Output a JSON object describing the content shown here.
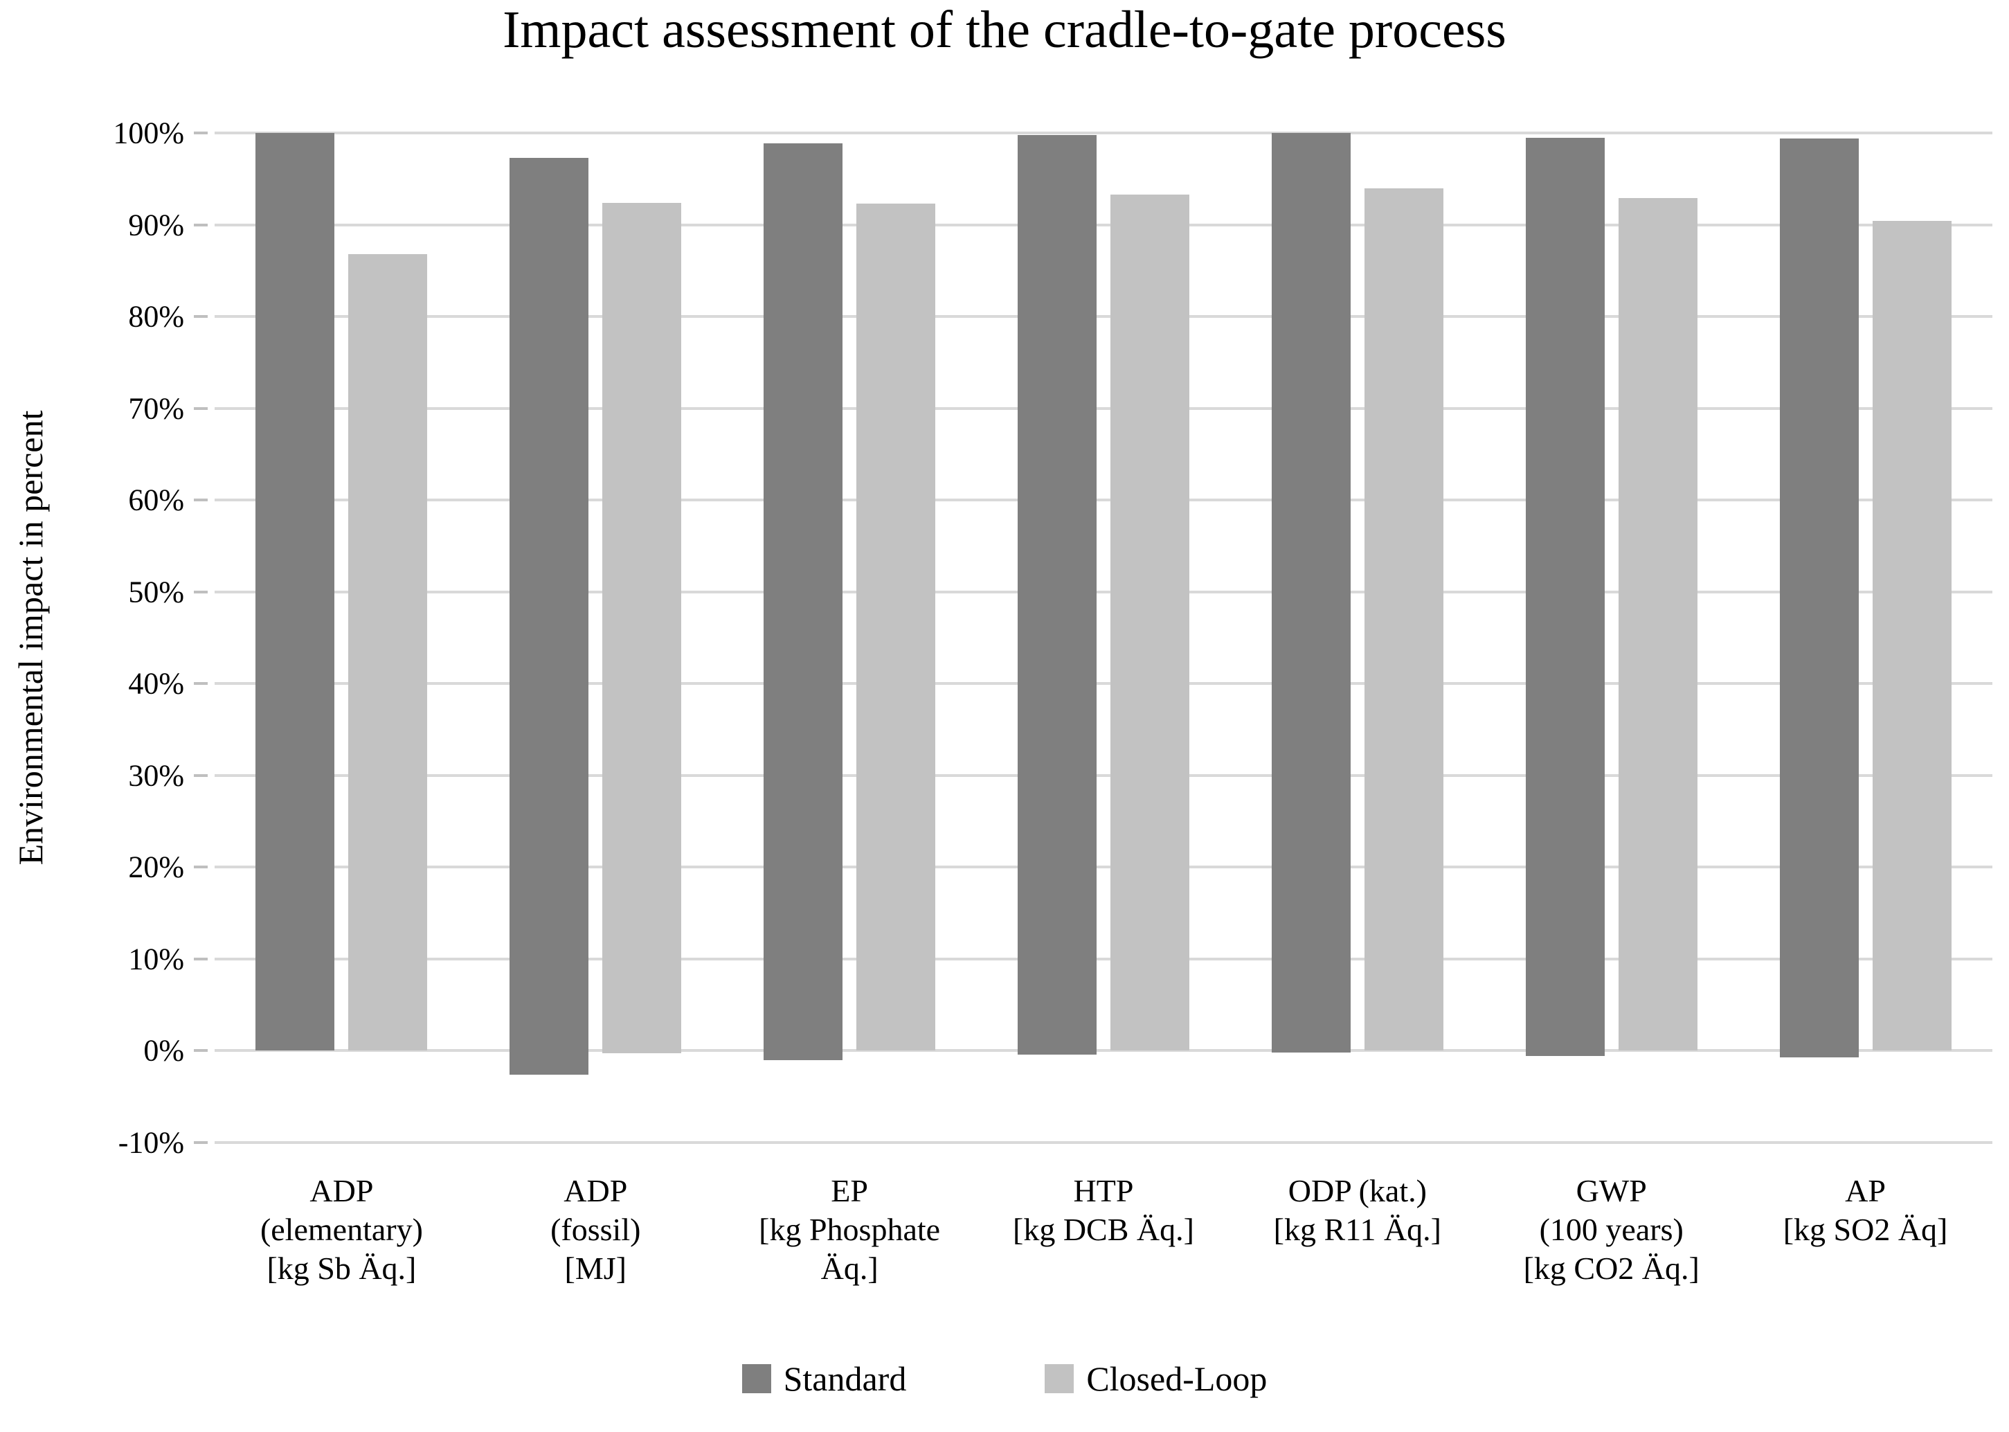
{
  "chart_data": {
    "type": "bar",
    "title": "Impact assessment of the cradle-to-gate process",
    "xlabel": "",
    "ylabel": "Environmental impact in percent",
    "ylim": [
      -10,
      100
    ],
    "grid": "horizontal",
    "legend_position": "bottom",
    "yticks": [
      {
        "value": 100,
        "label": "100%"
      },
      {
        "value": 90,
        "label": "90%"
      },
      {
        "value": 80,
        "label": "80%"
      },
      {
        "value": 70,
        "label": "70%"
      },
      {
        "value": 60,
        "label": "60%"
      },
      {
        "value": 50,
        "label": "50%"
      },
      {
        "value": 40,
        "label": "40%"
      },
      {
        "value": 30,
        "label": "30%"
      },
      {
        "value": 20,
        "label": "20%"
      },
      {
        "value": 10,
        "label": "10%"
      },
      {
        "value": 0,
        "label": "0%"
      },
      {
        "value": -10,
        "label": "-10%"
      }
    ],
    "categories": [
      [
        "ADP",
        "(elementary)",
        "[kg Sb Äq.]"
      ],
      [
        "ADP",
        "(fossil)",
        "[MJ]"
      ],
      [
        "EP",
        "[kg Phosphate",
        "Äq.]"
      ],
      [
        "HTP",
        "[kg DCB Äq.]"
      ],
      [
        "ODP (kat.)",
        "[kg R11 Äq.]"
      ],
      [
        "GWP",
        "(100 years)",
        "[kg CO2 Äq.]"
      ],
      [
        "AP",
        "[kg SO2 Äq]"
      ]
    ],
    "series": [
      {
        "name": "Standard",
        "color": "#7f7f7f",
        "values": [
          100,
          97.3,
          98.9,
          99.8,
          100,
          99.5,
          99.4
        ],
        "baselines": [
          0,
          -2.6,
          -1.0,
          -0.4,
          -0.2,
          -0.6,
          -0.7
        ]
      },
      {
        "name": "Closed-Loop",
        "color": "#c2c2c2",
        "values": [
          86.8,
          92.4,
          92.3,
          93.3,
          94.0,
          92.9,
          90.4
        ],
        "baselines": [
          0,
          -0.3,
          0,
          0,
          0,
          0,
          0
        ]
      }
    ],
    "colors": {
      "gridline": "#d9d9d9",
      "tick_mark": "#bfbfbf",
      "text": "#000000",
      "background": "#ffffff"
    }
  }
}
